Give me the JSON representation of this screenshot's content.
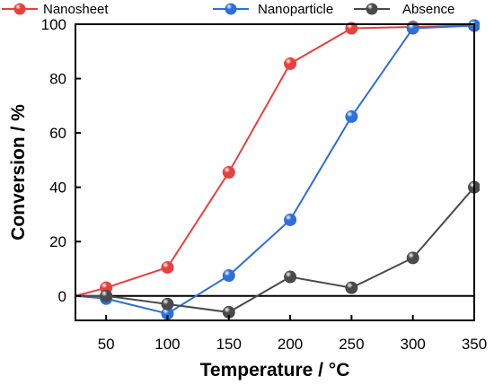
{
  "chart_data": {
    "type": "line",
    "xlabel": "Temperature / °C",
    "ylabel": "Conversion / %",
    "xlim": [
      25,
      350
    ],
    "ylim": [
      -9,
      100
    ],
    "x": [
      50,
      100,
      150,
      200,
      250,
      300,
      350
    ],
    "xticks": [
      "50",
      "100",
      "150",
      "200",
      "250",
      "300",
      "350"
    ],
    "yticks": [
      "0",
      "20",
      "40",
      "60",
      "80",
      "100"
    ],
    "ytick_values": [
      0,
      20,
      40,
      60,
      80,
      100
    ],
    "origin_point": [
      25,
      0
    ],
    "zero_line": true,
    "grid": false,
    "legend_position": "top",
    "series": [
      {
        "name": "Nanosheet",
        "color": "#e8403d",
        "values": [
          3,
          10.5,
          45.5,
          85.5,
          98.5,
          99,
          99.5
        ]
      },
      {
        "name": "Nanoparticle",
        "color": "#2e6fd9",
        "values": [
          -1,
          -6.5,
          7.5,
          28,
          66,
          98.5,
          99.5
        ]
      },
      {
        "name": "Absence",
        "color": "#4a4a4a",
        "values": [
          0,
          -3,
          -6,
          7,
          3,
          14,
          40
        ]
      }
    ]
  }
}
